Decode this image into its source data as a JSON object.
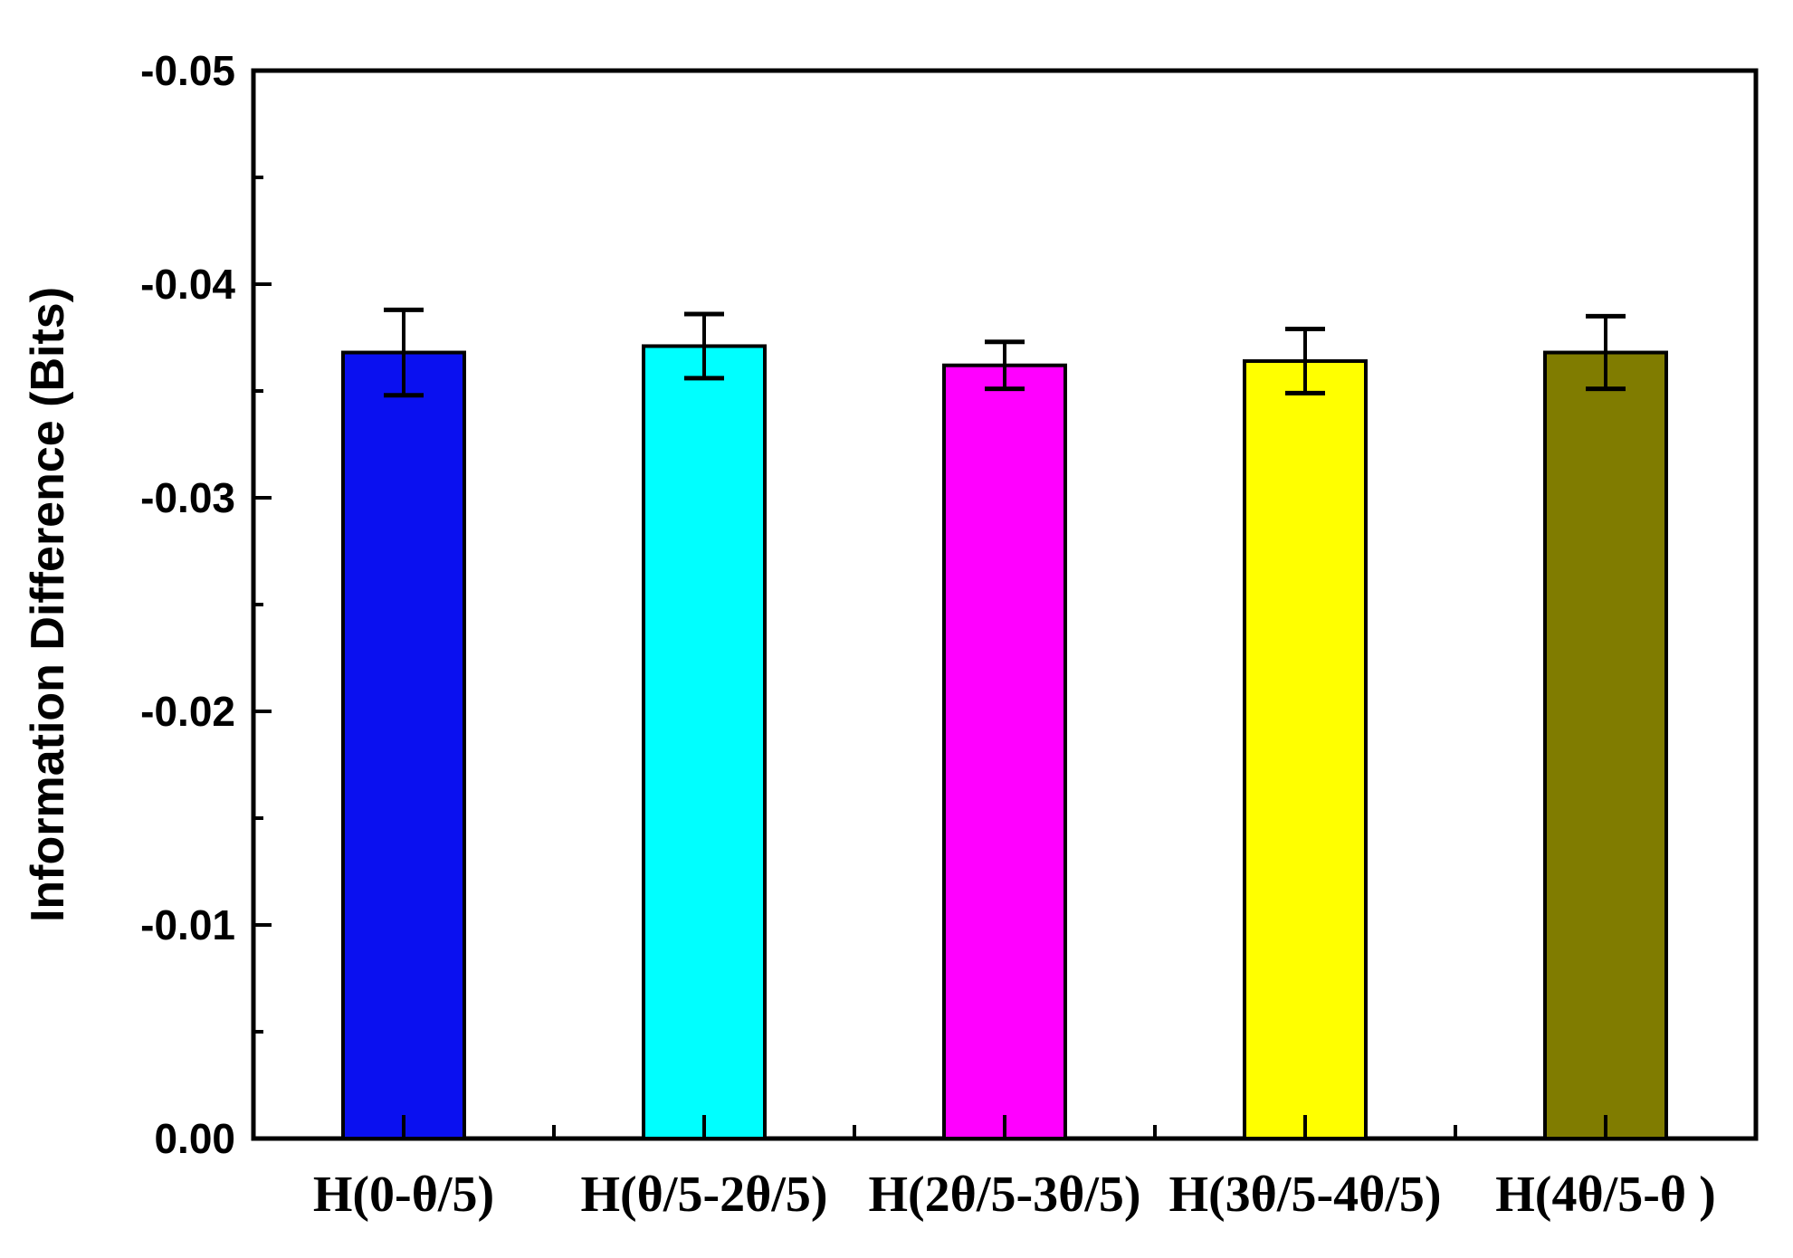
{
  "chart_data": {
    "type": "bar",
    "title": "",
    "xlabel": "",
    "ylabel": "Information Difference (Bits)",
    "ylim": [
      0.0,
      -0.05
    ],
    "y_axis_inverted": true,
    "y_ticks": [
      0.0,
      -0.01,
      -0.02,
      -0.03,
      -0.04,
      -0.05
    ],
    "y_tick_labels": [
      "0.00",
      "-0.01",
      "-0.02",
      "-0.03",
      "-0.04",
      "-0.05"
    ],
    "grid": false,
    "legend": "none",
    "categories": [
      "H(0-θ/5)",
      "H(θ/5-2θ/5)",
      "H(2θ/5-3θ/5)",
      "H(3θ/5-4θ/5)",
      "H(4θ/5-θ )"
    ],
    "values": [
      -0.0368,
      -0.0371,
      -0.0362,
      -0.0364,
      -0.0368
    ],
    "errors": [
      0.002,
      0.0015,
      0.0011,
      0.0015,
      0.0017
    ],
    "colors": [
      "#0a10f0",
      "#00ffff",
      "#ff00ff",
      "#ffff00",
      "#807c00"
    ]
  }
}
